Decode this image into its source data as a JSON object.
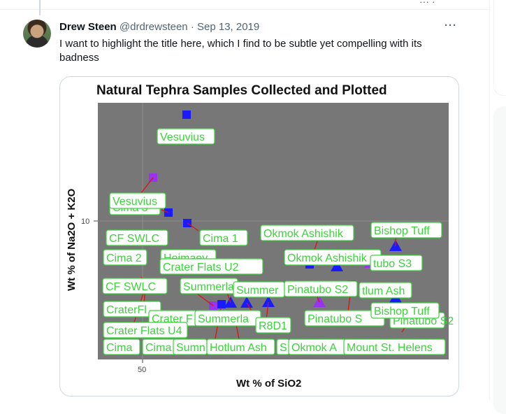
{
  "tweet": {
    "author_name": "Drew Steen",
    "handle": "@drdrewsteen",
    "separator": "·",
    "date": "Sep 13, 2019",
    "more_icon": "more-horizontal-icon",
    "text": "I want to highlight the title here, which I find to be subtle yet compelling with its badness"
  },
  "chart_data": {
    "type": "scatter",
    "title": "Natural Tephra Samples Collected and Plotted",
    "xlabel": "Wt % of SiO2",
    "ylabel": "Wt % of Na2O + K2O",
    "x_ticks": [
      "50"
    ],
    "y_ticks": [
      "10"
    ],
    "grid": true,
    "background": "#777777",
    "label_text_color": "#3cd23c",
    "series_colors": {
      "blue": "#1a1aff",
      "purple": "#9933ee"
    },
    "labels": [
      "Vesuvius",
      "Vesuvius",
      "Cima 3",
      "Cima 1",
      "CF SWLC",
      "Cima 2",
      "Heimaey",
      "Crater Flats U2",
      "CF SWLC",
      "Summerla",
      "Summer",
      "Pinatubo S2",
      "tlum Ash",
      "CraterFl",
      "Crater F",
      "Summerla",
      "R8D1",
      "Crater Flats U4",
      "Cima",
      "Cima",
      "Sumn",
      "Hotlum Ash",
      "S",
      "Okmok A",
      "Mount St. Helens",
      "Okmok Ashishik",
      "Okmok Ashishik",
      "Bishop Tuff",
      "tubo S3",
      "Pinatubo S",
      "Bishop Tuff",
      "Pinatubo S2"
    ]
  }
}
